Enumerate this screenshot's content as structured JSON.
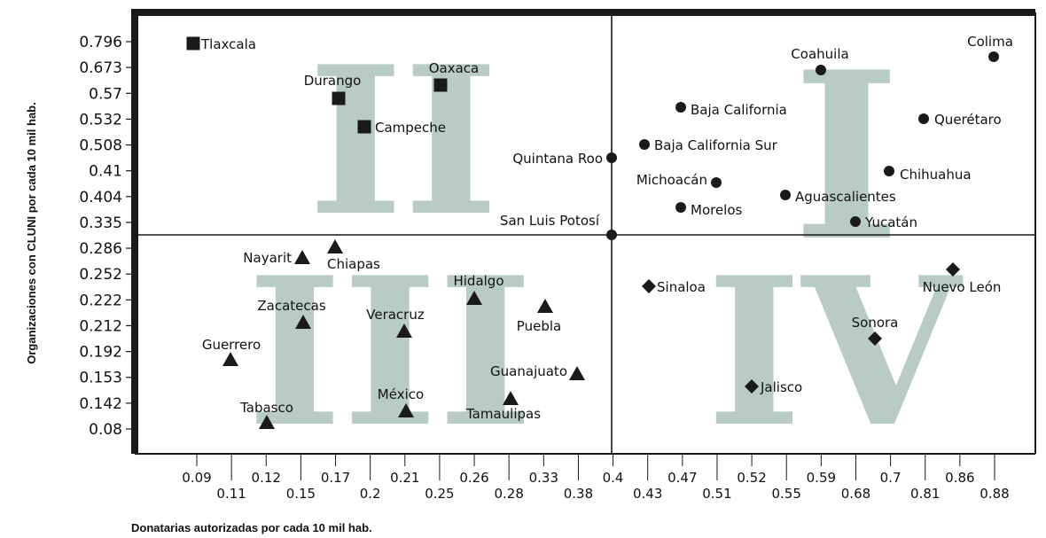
{
  "chart_data": {
    "type": "scatter",
    "title": "",
    "xlabel": "Donatarias autorizadas por cada 10 mil hab.",
    "ylabel": "Organizaciones con CLUNI por cada 10 mil hab.",
    "x_ticks": [
      "0.09",
      "0.11",
      "0.12",
      "0.15",
      "0.17",
      "0.2",
      "0.21",
      "0.25",
      "0.26",
      "0.28",
      "0.33",
      "0.38",
      "0.4",
      "0.43",
      "0.47",
      "0.51",
      "0.52",
      "0.55",
      "0.59",
      "0.68",
      "0.7",
      "0.81",
      "0.86",
      "0.88"
    ],
    "y_ticks": [
      "0.796",
      "0.673",
      "0.57",
      "0.532",
      "0.508",
      "0.41",
      "0.404",
      "0.335",
      "0.286",
      "0.252",
      "0.222",
      "0.212",
      "0.192",
      "0.153",
      "0.142",
      "0.08"
    ],
    "quadrant_labels": [
      "I",
      "II",
      "III",
      "IV"
    ],
    "marker_legend": {
      "I": "circle",
      "II": "square",
      "III": "triangle",
      "IV": "diamond"
    },
    "points": [
      {
        "name": "Tlaxcala",
        "x": "0.09",
        "y": "0.796",
        "quadrant": "II"
      },
      {
        "name": "Durango",
        "x": "0.17",
        "y": "0.57",
        "quadrant": "II"
      },
      {
        "name": "Oaxaca",
        "x": "0.25",
        "y": "0.57",
        "quadrant": "II"
      },
      {
        "name": "Campeche",
        "x": "0.2",
        "y": "0.508",
        "quadrant": "II"
      },
      {
        "name": "Coahuila",
        "x": "0.59",
        "y": "0.673",
        "quadrant": "I"
      },
      {
        "name": "Colima",
        "x": "0.88",
        "y": "0.673",
        "quadrant": "I"
      },
      {
        "name": "Baja California",
        "x": "0.47",
        "y": "0.532",
        "quadrant": "I"
      },
      {
        "name": "Querétaro",
        "x": "0.81",
        "y": "0.532",
        "quadrant": "I"
      },
      {
        "name": "Baja California Sur",
        "x": "0.43",
        "y": "0.508",
        "quadrant": "I"
      },
      {
        "name": "Quintana Roo",
        "x": "0.4",
        "y": "0.41",
        "quadrant": "I"
      },
      {
        "name": "Chihuahua",
        "x": "0.7",
        "y": "0.41",
        "quadrant": "I"
      },
      {
        "name": "Michoacán",
        "x": "0.51",
        "y": "0.404",
        "quadrant": "I"
      },
      {
        "name": "Aguascalientes",
        "x": "0.55",
        "y": "0.404",
        "quadrant": "I"
      },
      {
        "name": "Morelos",
        "x": "0.47",
        "y": "0.335",
        "quadrant": "I"
      },
      {
        "name": "Yucatán",
        "x": "0.68",
        "y": "0.335",
        "quadrant": "I"
      },
      {
        "name": "San Luis Potosí",
        "x": "0.4",
        "y": "0.3",
        "quadrant": "I"
      },
      {
        "name": "Nayarit",
        "x": "0.15",
        "y": "0.286",
        "quadrant": "III"
      },
      {
        "name": "Chiapas",
        "x": "0.17",
        "y": "0.286",
        "quadrant": "III"
      },
      {
        "name": "Hidalgo",
        "x": "0.26",
        "y": "0.222",
        "quadrant": "III"
      },
      {
        "name": "Zacatecas",
        "x": "0.15",
        "y": "0.212",
        "quadrant": "III"
      },
      {
        "name": "Veracruz",
        "x": "0.21",
        "y": "0.212",
        "quadrant": "III"
      },
      {
        "name": "Puebla",
        "x": "0.33",
        "y": "0.222",
        "quadrant": "III"
      },
      {
        "name": "Guerrero",
        "x": "0.11",
        "y": "0.192",
        "quadrant": "III"
      },
      {
        "name": "Guanajuato",
        "x": "0.38",
        "y": "0.153",
        "quadrant": "III"
      },
      {
        "name": "Tamaulipas",
        "x": "0.28",
        "y": "0.142",
        "quadrant": "III"
      },
      {
        "name": "México",
        "x": "0.21",
        "y": "0.142",
        "quadrant": "III"
      },
      {
        "name": "Tabasco",
        "x": "0.12",
        "y": "0.08",
        "quadrant": "III"
      },
      {
        "name": "Sinaloa",
        "x": "0.43",
        "y": "0.222",
        "quadrant": "IV"
      },
      {
        "name": "Nuevo León",
        "x": "0.86",
        "y": "0.252",
        "quadrant": "IV"
      },
      {
        "name": "Sonora",
        "x": "0.68",
        "y": "0.192",
        "quadrant": "IV"
      },
      {
        "name": "Jalisco",
        "x": "0.52",
        "y": "0.153",
        "quadrant": "IV"
      }
    ],
    "grid": false,
    "legend": "none"
  }
}
